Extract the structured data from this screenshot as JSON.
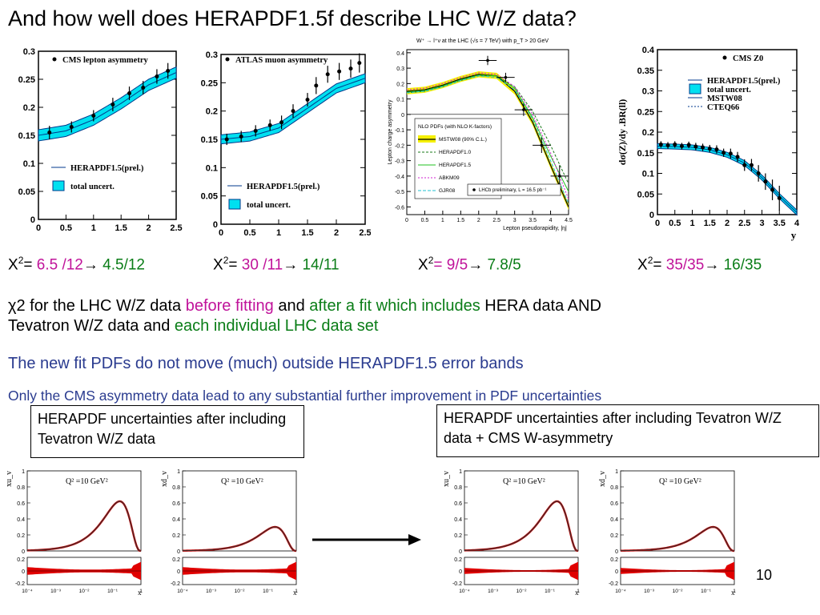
{
  "title": "And how well does HERAPDF1.5f describe LHC W/Z data?",
  "chi2_rows": [
    {
      "prefix": "X",
      "sup": "2",
      "eq": "=",
      "before": " 6.5 /12",
      "arrow": "→",
      "after": " 4.5/12"
    },
    {
      "prefix": "X",
      "sup": "2",
      "eq": "=",
      "before": " 30 /11",
      "arrow": "→",
      "after": " 14/11"
    },
    {
      "prefix": "X",
      "sup": "2",
      "eq": "=",
      "before": " 9/5",
      "arrow": "→",
      "after": " 7.8/5"
    },
    {
      "prefix": "X",
      "sup": "2",
      "eq": "=",
      "before": " 35/35",
      "arrow": "→",
      "after": " 16/35"
    }
  ],
  "body": {
    "line1_a": "χ2 for the LHC W/Z data ",
    "line1_b": "before fitting",
    "line1_c": " and ",
    "line1_d": "after a fit which includes",
    "line1_e": " HERA data AND",
    "line2_a": "Tevatron W/Z data  and ",
    "line2_b": "each individual LHC data set",
    "note1": "The new fit PDFs do not move (much) outside HERAPDF1.5 error bands",
    "note2": "Only the CMS asymmetry data lead to any substantial further improvement in PDF uncertainties"
  },
  "boxes": {
    "left": "HERAPDF uncertainties after including Tevatron W/Z data",
    "right": "HERAPDF uncertainties after  including Tevatron W/Z data + CMS W-asymmetry"
  },
  "page_number": "10",
  "colors": {
    "band": "#00e0f0",
    "band_edge": "#003a8c",
    "red_band": "#e00000",
    "magenta": "#c0139a",
    "green": "#0a7d17",
    "blue_text": "#2a3b8f"
  },
  "chart_data": [
    {
      "type": "scatter",
      "name": "cms-lepton-asymmetry",
      "legend_title": "CMS lepton asymmetry",
      "legend": [
        "HERAPDF1.5(prel.)",
        "total uncert."
      ],
      "xticks": [
        "0",
        "0.5",
        "1",
        "1.5",
        "2",
        "2.5"
      ],
      "yticks": [
        "0",
        "0.05",
        "0.1",
        "0.15",
        "0.2",
        "0.25",
        "0.3"
      ],
      "xlim": [
        0,
        2.5
      ],
      "ylim": [
        0,
        0.3
      ],
      "points": [
        [
          0.2,
          0.155
        ],
        [
          0.6,
          0.165
        ],
        [
          1.0,
          0.185
        ],
        [
          1.35,
          0.205
        ],
        [
          1.65,
          0.225
        ],
        [
          1.9,
          0.235
        ],
        [
          2.15,
          0.255
        ],
        [
          2.35,
          0.265
        ]
      ],
      "errors": [
        0.012,
        0.01,
        0.01,
        0.012,
        0.012,
        0.012,
        0.013,
        0.014
      ],
      "band_center": [
        [
          0,
          0.15
        ],
        [
          0.5,
          0.158
        ],
        [
          1.0,
          0.178
        ],
        [
          1.5,
          0.207
        ],
        [
          2.0,
          0.24
        ],
        [
          2.5,
          0.262
        ]
      ],
      "band_halfwidth": 0.01
    },
    {
      "type": "scatter",
      "name": "atlas-muon-asymmetry",
      "legend_title": "ATLAS muon asymmetry",
      "legend": [
        "HERAPDF1.5(prel.)",
        "total uncert."
      ],
      "xticks": [
        "0",
        "0.5",
        "1",
        "1.5",
        "2",
        "2.5"
      ],
      "yticks": [
        "0",
        "0.05",
        "0.1",
        "0.15",
        "0.2",
        "0.25",
        "0.3"
      ],
      "xlim": [
        0,
        2.5
      ],
      "ylim": [
        0,
        0.3
      ],
      "points": [
        [
          0.1,
          0.15
        ],
        [
          0.35,
          0.155
        ],
        [
          0.6,
          0.165
        ],
        [
          0.85,
          0.175
        ],
        [
          1.05,
          0.18
        ],
        [
          1.25,
          0.2
        ],
        [
          1.5,
          0.22
        ],
        [
          1.65,
          0.245
        ],
        [
          1.85,
          0.265
        ],
        [
          2.05,
          0.27
        ],
        [
          2.25,
          0.275
        ],
        [
          2.4,
          0.285
        ]
      ],
      "errors": [
        0.01,
        0.01,
        0.01,
        0.01,
        0.012,
        0.012,
        0.012,
        0.015,
        0.015,
        0.015,
        0.016,
        0.017
      ],
      "band_center": [
        [
          0,
          0.15
        ],
        [
          0.5,
          0.155
        ],
        [
          1.0,
          0.17
        ],
        [
          1.5,
          0.205
        ],
        [
          2.0,
          0.24
        ],
        [
          2.5,
          0.258
        ]
      ],
      "band_halfwidth": 0.008
    },
    {
      "type": "line",
      "name": "lhcb-w-asymmetry",
      "title": "W⁺ → l⁺ν at the LHC (√s = 7 TeV) with p_T > 20 GeV",
      "xlabel": "Lepton pseudorapidity, |η|",
      "ylabel": "Lepton charge asymmetry",
      "xticks": [
        "0",
        "0.5",
        "1",
        "1.5",
        "2",
        "2.5",
        "3",
        "3.5",
        "4",
        "4.5"
      ],
      "yticks": [
        "-0.6",
        "-0.5",
        "-0.4",
        "-0.3",
        "-0.2",
        "-0.1",
        "0",
        "0.1",
        "0.2",
        "0.3",
        "0.4"
      ],
      "xlim": [
        0,
        4.5
      ],
      "ylim": [
        -0.65,
        0.42
      ],
      "legend_title": "NLO PDFs (with NLO K-factors)",
      "series": [
        {
          "name": "MSTW08 (90% C.L.)",
          "x": [
            0,
            0.5,
            1,
            1.5,
            2,
            2.5,
            3,
            3.5,
            4,
            4.5
          ],
          "y": [
            0.15,
            0.16,
            0.19,
            0.23,
            0.26,
            0.25,
            0.15,
            -0.05,
            -0.33,
            -0.6
          ]
        },
        {
          "name": "HERAPDF1.0",
          "x": [
            0,
            0.5,
            1,
            1.5,
            2,
            2.5,
            3,
            3.5,
            4,
            4.5
          ],
          "y": [
            0.14,
            0.15,
            0.18,
            0.22,
            0.25,
            0.25,
            0.18,
            0.02,
            -0.2,
            -0.45
          ]
        },
        {
          "name": "HERAPDF1.5",
          "x": [
            0,
            0.5,
            1,
            1.5,
            2,
            2.5,
            3,
            3.5,
            4,
            4.5
          ],
          "y": [
            0.145,
            0.155,
            0.185,
            0.225,
            0.255,
            0.25,
            0.17,
            -0.02,
            -0.27,
            -0.5
          ]
        },
        {
          "name": "ABKM09",
          "x": [
            0,
            0.5,
            1,
            1.5,
            2,
            2.5,
            3,
            3.5,
            4,
            4.5
          ],
          "y": [
            0.16,
            0.17,
            0.2,
            0.24,
            0.27,
            0.26,
            0.18,
            0.0,
            -0.25,
            -0.55
          ]
        },
        {
          "name": "GJR08",
          "x": [
            0,
            0.5,
            1,
            1.5,
            2,
            2.5,
            3,
            3.5,
            4,
            4.5
          ],
          "y": [
            0.14,
            0.15,
            0.18,
            0.22,
            0.25,
            0.24,
            0.16,
            -0.03,
            -0.3,
            -0.58
          ]
        }
      ],
      "data_label": "LHCb preliminary, L = 16.5 pb⁻¹",
      "points": [
        [
          2.25,
          0.35
        ],
        [
          2.75,
          0.24
        ],
        [
          3.25,
          0.03
        ],
        [
          3.75,
          -0.2
        ],
        [
          4.25,
          -0.4
        ]
      ],
      "errors": [
        0.03,
        0.03,
        0.04,
        0.05,
        0.07
      ]
    },
    {
      "type": "scatter",
      "name": "cms-z0",
      "legend_title": "CMS Z0",
      "legend": [
        "HERAPDF1.5(prel.)",
        "total uncert.",
        "MSTW08",
        "CTEQ66"
      ],
      "ylabel": "dσ(Z)/dy .BR(ll)",
      "xlabel": "y",
      "xticks": [
        "0",
        "0.5",
        "1",
        "1.5",
        "2",
        "2.5",
        "3",
        "3.5",
        "4"
      ],
      "yticks": [
        "0",
        "0.05",
        "0.1",
        "0.15",
        "0.2",
        "0.25",
        "0.3",
        "0.35",
        "0.4"
      ],
      "xlim": [
        0,
        4
      ],
      "ylim": [
        0,
        0.4
      ],
      "points": [
        [
          0.1,
          0.17
        ],
        [
          0.3,
          0.168
        ],
        [
          0.5,
          0.17
        ],
        [
          0.7,
          0.166
        ],
        [
          0.9,
          0.169
        ],
        [
          1.1,
          0.165
        ],
        [
          1.3,
          0.163
        ],
        [
          1.5,
          0.16
        ],
        [
          1.7,
          0.158
        ],
        [
          1.9,
          0.15
        ],
        [
          2.1,
          0.148
        ],
        [
          2.3,
          0.14
        ],
        [
          2.5,
          0.12
        ],
        [
          2.7,
          0.12
        ],
        [
          2.9,
          0.1
        ],
        [
          3.1,
          0.08
        ],
        [
          3.3,
          0.06
        ],
        [
          3.5,
          0.04
        ]
      ],
      "errors": [
        0.008,
        0.008,
        0.008,
        0.008,
        0.008,
        0.009,
        0.009,
        0.009,
        0.01,
        0.01,
        0.012,
        0.012,
        0.014,
        0.015,
        0.02,
        0.02,
        0.025,
        0.03
      ],
      "band_center": [
        [
          0,
          0.166
        ],
        [
          0.5,
          0.165
        ],
        [
          1.0,
          0.163
        ],
        [
          1.5,
          0.157
        ],
        [
          2.0,
          0.145
        ],
        [
          2.5,
          0.125
        ],
        [
          3.0,
          0.09
        ],
        [
          3.5,
          0.045
        ],
        [
          4.0,
          0.005
        ]
      ],
      "band_halfwidth": 0.006
    },
    {
      "type": "line",
      "name": "xuv-left",
      "ylabel": "xu_v",
      "annotation": "Q² =10 GeV²",
      "xlabel": "x",
      "yticks": [
        "0",
        "0.2",
        "0.4",
        "0.6",
        "0.8",
        "1"
      ],
      "ratio_yticks": [
        "-0.2",
        "0",
        "0.2"
      ],
      "xticks": [
        "10⁻⁴",
        "10⁻³",
        "10⁻²",
        "10⁻¹",
        "1"
      ],
      "peak": 0.62,
      "band": "wide"
    },
    {
      "type": "line",
      "name": "xdv-left",
      "ylabel": "xd_v",
      "annotation": "Q² =10 GeV²",
      "xlabel": "x",
      "yticks": [
        "0",
        "0.2",
        "0.4",
        "0.6",
        "0.8",
        "1"
      ],
      "ratio_yticks": [
        "-0.2",
        "0",
        "0.2"
      ],
      "xticks": [
        "10⁻⁴",
        "10⁻³",
        "10⁻²",
        "10⁻¹",
        "1"
      ],
      "peak": 0.3,
      "band": "wide"
    },
    {
      "type": "line",
      "name": "xuv-right",
      "ylabel": "xu_v",
      "annotation": "Q² =10 GeV²",
      "xlabel": "x",
      "yticks": [
        "0",
        "0.2",
        "0.4",
        "0.6",
        "0.8",
        "1"
      ],
      "ratio_yticks": [
        "-0.2",
        "0",
        "0.2"
      ],
      "xticks": [
        "10⁻⁴",
        "10⁻³",
        "10⁻²",
        "10⁻¹",
        "1"
      ],
      "peak": 0.62,
      "band": "narrow"
    },
    {
      "type": "line",
      "name": "xdv-right",
      "ylabel": "xd_v",
      "annotation": "Q² =10 GeV²",
      "xlabel": "x",
      "yticks": [
        "0",
        "0.2",
        "0.4",
        "0.6",
        "0.8",
        "1"
      ],
      "ratio_yticks": [
        "-0.2",
        "0",
        "0.2"
      ],
      "xticks": [
        "10⁻⁴",
        "10⁻³",
        "10⁻²",
        "10⁻¹",
        "1"
      ],
      "peak": 0.3,
      "band": "narrow"
    }
  ]
}
